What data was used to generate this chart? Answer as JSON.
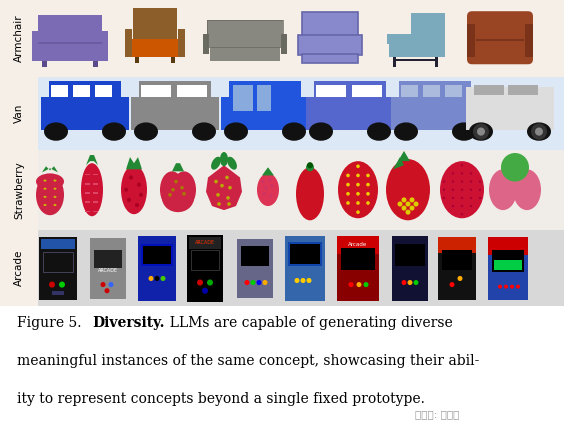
{
  "bg_color": "#f5efe8",
  "row_bg": [
    "#f5efe8",
    "#e8eff8",
    "#f0ede8",
    "#e0e0e0"
  ],
  "row_labels": [
    "Armchair",
    "Van",
    "Strawberry",
    "Arcade"
  ],
  "caption_text": "Figure 5.  LLMs are capable of generating diverse meaningful instances of the same concept, showcasing their ability to represent concepts beyond a single fixed prototype.",
  "watermark": "公众号: 新智元"
}
